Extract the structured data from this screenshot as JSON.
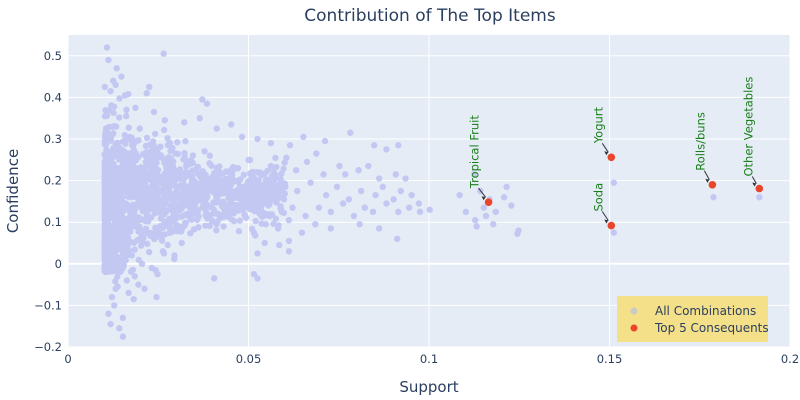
{
  "chart_data": {
    "type": "scatter",
    "title": "Contribution of The Top Items",
    "xlabel": "Support",
    "ylabel": "Confidence",
    "xlim": [
      0,
      0.2
    ],
    "ylim": [
      -0.2,
      0.55
    ],
    "x_ticks": [
      0,
      0.05,
      0.1,
      0.15,
      0.2
    ],
    "x_tick_labels": [
      "0",
      "0.05",
      "0.1",
      "0.15",
      "0.2"
    ],
    "y_ticks": [
      -0.2,
      -0.1,
      0,
      0.1,
      0.2,
      0.3,
      0.4,
      0.5
    ],
    "y_tick_labels": [
      "−0.2",
      "−0.1",
      "0",
      "0.1",
      "0.2",
      "0.3",
      "0.4",
      "0.5"
    ],
    "grid": true,
    "legend_position": "bottom-right",
    "colors": {
      "all": "#c3c8f3",
      "top": "#e8452c",
      "plot_bg": "#e5ecf6",
      "legend_bg": "#f5e08a",
      "annotation": "#1a7f1a",
      "legend_all_marker": "#c9c9c9"
    },
    "series": [
      {
        "name": "All Combinations",
        "points": [
          [
            0.0108,
            0.52
          ],
          [
            0.0112,
            0.49
          ],
          [
            0.0135,
            0.47
          ],
          [
            0.0148,
            0.45
          ],
          [
            0.0125,
            0.44
          ],
          [
            0.0265,
            0.505
          ],
          [
            0.0102,
            0.425
          ],
          [
            0.0118,
            0.415
          ],
          [
            0.0218,
            0.41
          ],
          [
            0.0225,
            0.425
          ],
          [
            0.0132,
            0.43
          ],
          [
            0.0158,
            0.405
          ],
          [
            0.0372,
            0.395
          ],
          [
            0.0385,
            0.385
          ],
          [
            0.0162,
            0.37
          ],
          [
            0.0187,
            0.375
          ],
          [
            0.0238,
            0.365
          ],
          [
            0.0268,
            0.345
          ],
          [
            0.0322,
            0.34
          ],
          [
            0.0365,
            0.35
          ],
          [
            0.0412,
            0.325
          ],
          [
            0.0452,
            0.335
          ],
          [
            0.0482,
            0.305
          ],
          [
            0.0525,
            0.3
          ],
          [
            0.0562,
            0.29
          ],
          [
            0.0652,
            0.305
          ],
          [
            0.0712,
            0.295
          ],
          [
            0.0782,
            0.315
          ],
          [
            0.0615,
            0.285
          ],
          [
            0.0688,
            0.265
          ],
          [
            0.0848,
            0.285
          ],
          [
            0.0882,
            0.275
          ],
          [
            0.0915,
            0.285
          ],
          [
            0.0562,
            0.235
          ],
          [
            0.0605,
            0.255
          ],
          [
            0.0632,
            0.225
          ],
          [
            0.0662,
            0.245
          ],
          [
            0.0708,
            0.215
          ],
          [
            0.0752,
            0.235
          ],
          [
            0.0768,
            0.215
          ],
          [
            0.0805,
            0.225
          ],
          [
            0.0832,
            0.235
          ],
          [
            0.0862,
            0.205
          ],
          [
            0.0908,
            0.215
          ],
          [
            0.0935,
            0.205
          ],
          [
            0.0568,
            0.195
          ],
          [
            0.0602,
            0.185
          ],
          [
            0.0635,
            0.175
          ],
          [
            0.0672,
            0.195
          ],
          [
            0.0715,
            0.165
          ],
          [
            0.0745,
            0.185
          ],
          [
            0.0778,
            0.155
          ],
          [
            0.0812,
            0.175
          ],
          [
            0.0852,
            0.165
          ],
          [
            0.0872,
            0.185
          ],
          [
            0.0902,
            0.155
          ],
          [
            0.0922,
            0.175
          ],
          [
            0.0952,
            0.165
          ],
          [
            0.0972,
            0.145
          ],
          [
            0.0558,
            0.145
          ],
          [
            0.0592,
            0.125
          ],
          [
            0.0622,
            0.135
          ],
          [
            0.0658,
            0.115
          ],
          [
            0.0695,
            0.135
          ],
          [
            0.0728,
            0.125
          ],
          [
            0.0762,
            0.145
          ],
          [
            0.0792,
            0.115
          ],
          [
            0.0822,
            0.135
          ],
          [
            0.0845,
            0.125
          ],
          [
            0.0882,
            0.145
          ],
          [
            0.0915,
            0.125
          ],
          [
            0.0945,
            0.135
          ],
          [
            0.0975,
            0.125
          ],
          [
            0.1002,
            0.13
          ],
          [
            0.0548,
            0.095
          ],
          [
            0.0582,
            0.085
          ],
          [
            0.0612,
            0.105
          ],
          [
            0.0648,
            0.075
          ],
          [
            0.0685,
            0.095
          ],
          [
            0.0728,
            0.085
          ],
          [
            0.0808,
            0.095
          ],
          [
            0.0862,
            0.085
          ],
          [
            0.0912,
            0.06
          ],
          [
            0.0612,
            0.055
          ],
          [
            0.0515,
            0.075
          ],
          [
            0.0545,
            0.05
          ],
          [
            0.0585,
            0.045
          ],
          [
            0.0525,
            0.025
          ],
          [
            0.0612,
            0.03
          ],
          [
            0.0515,
            -0.025
          ],
          [
            0.0525,
            -0.035
          ],
          [
            0.0405,
            -0.035
          ],
          [
            0.0245,
            -0.08
          ],
          [
            0.1125,
            0.215
          ],
          [
            0.1142,
            0.175
          ],
          [
            0.1168,
            0.155
          ],
          [
            0.1152,
            0.135
          ],
          [
            0.1185,
            0.125
          ],
          [
            0.1128,
            0.105
          ],
          [
            0.1178,
            0.095
          ],
          [
            0.1215,
            0.185
          ],
          [
            0.1208,
            0.16
          ],
          [
            0.1228,
            0.14
          ],
          [
            0.1248,
            0.08
          ],
          [
            0.1245,
            0.072
          ],
          [
            0.1085,
            0.165
          ],
          [
            0.1102,
            0.125
          ],
          [
            0.1132,
            0.09
          ],
          [
            0.1158,
            0.115
          ],
          [
            0.1512,
            0.195
          ],
          [
            0.1512,
            0.075
          ],
          [
            0.1788,
            0.16
          ],
          [
            0.1915,
            0.16
          ],
          [
            0.0105,
            0.0
          ],
          [
            0.0112,
            -0.12
          ],
          [
            0.0128,
            -0.1
          ],
          [
            0.0118,
            -0.145
          ],
          [
            0.0142,
            -0.155
          ],
          [
            0.0152,
            -0.13
          ],
          [
            0.0168,
            -0.07
          ],
          [
            0.0152,
            -0.175
          ],
          [
            0.0182,
            -0.085
          ],
          [
            0.0195,
            -0.05
          ],
          [
            0.0212,
            -0.06
          ],
          [
            0.0248,
            -0.025
          ],
          [
            0.0205,
            0.0
          ],
          [
            0.0232,
            -0.01
          ],
          [
            0.0185,
            -0.03
          ],
          [
            0.0163,
            -0.04
          ],
          [
            0.0132,
            -0.06
          ],
          [
            0.0122,
            -0.08
          ],
          [
            0.0139,
            -0.02
          ],
          [
            0.0263,
            0.03
          ],
          [
            0.0295,
            0.02
          ],
          [
            0.0315,
            0.05
          ]
        ]
      },
      {
        "name": "Top 5 Consequents",
        "points": [
          {
            "label": "Tropical Fruit",
            "x": 0.1165,
            "y": 0.148
          },
          {
            "label": "Yogurt",
            "x": 0.1505,
            "y": 0.256
          },
          {
            "label": "Soda",
            "x": 0.1505,
            "y": 0.092
          },
          {
            "label": "Rolls/buns",
            "x": 0.1785,
            "y": 0.19
          },
          {
            "label": "Other Vegetables",
            "x": 0.1915,
            "y": 0.181
          }
        ]
      }
    ],
    "legend": [
      "All Combinations",
      "Top 5 Consequents"
    ]
  }
}
